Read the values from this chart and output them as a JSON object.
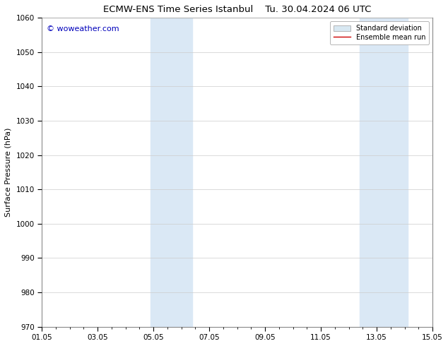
{
  "title": "ECMW-ENS Time Series Istanbul",
  "title_right": "Tu. 30.04.2024 06 UTC",
  "ylabel": "Surface Pressure (hPa)",
  "ylim": [
    970,
    1060
  ],
  "yticks": [
    970,
    980,
    990,
    1000,
    1010,
    1020,
    1030,
    1040,
    1050,
    1060
  ],
  "xlim": [
    0,
    14
  ],
  "xtick_labels": [
    "01.05",
    "03.05",
    "05.05",
    "07.05",
    "09.05",
    "11.05",
    "13.05",
    "15.05"
  ],
  "xtick_positions": [
    0,
    2,
    4,
    6,
    8,
    10,
    12,
    14
  ],
  "shaded_bands": [
    {
      "x_start": 3.9,
      "x_end": 5.4,
      "color": "#dae8f5"
    },
    {
      "x_start": 11.4,
      "x_end": 13.1,
      "color": "#dae8f5"
    }
  ],
  "watermark_text": "© woweather.com",
  "watermark_color": "#0000bb",
  "legend_std_color": "#d8e8f2",
  "legend_mean_color": "#cc0000",
  "background_color": "#ffffff",
  "grid_color": "#cccccc",
  "title_fontsize": 9.5,
  "ylabel_fontsize": 8,
  "tick_fontsize": 7.5,
  "watermark_fontsize": 8,
  "legend_fontsize": 7
}
